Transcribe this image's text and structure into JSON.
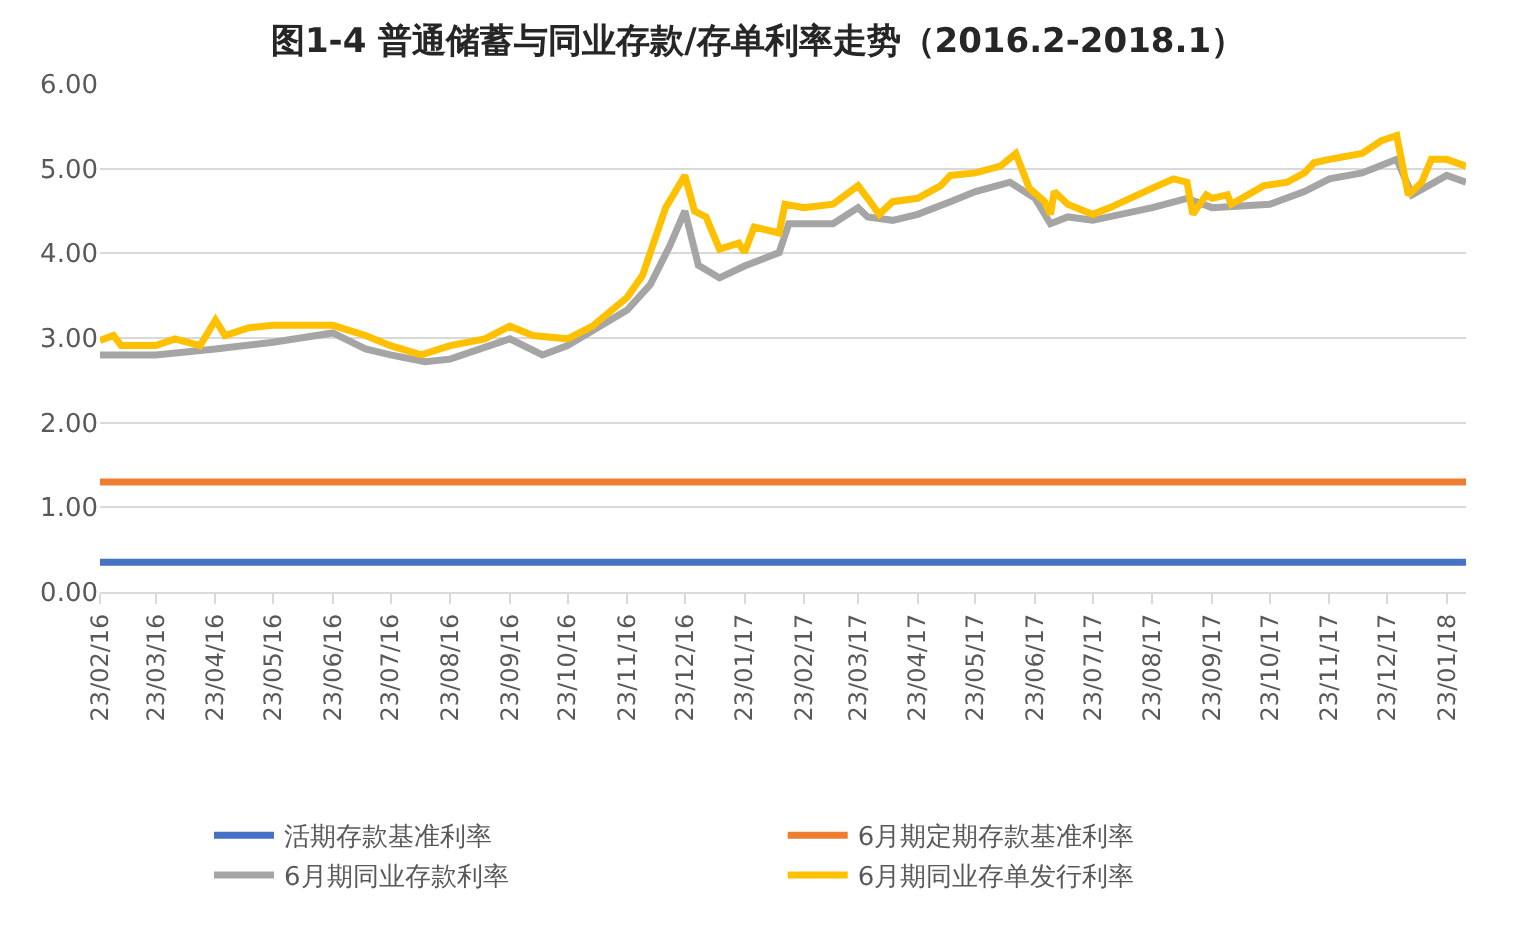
{
  "chart_data": {
    "type": "line",
    "title": "图1-4 普通储蓄与同业存款/存单利率走势（2016.2-2018.1）",
    "xlim": [
      "2016-02-23",
      "2018-02-02"
    ],
    "xticks": [
      {
        "value": "2016-02-23",
        "label": "23/02/16"
      },
      {
        "value": "2016-03-23",
        "label": "23/03/16"
      },
      {
        "value": "2016-04-23",
        "label": "23/04/16"
      },
      {
        "value": "2016-05-23",
        "label": "23/05/16"
      },
      {
        "value": "2016-06-23",
        "label": "23/06/16"
      },
      {
        "value": "2016-07-23",
        "label": "23/07/16"
      },
      {
        "value": "2016-08-23",
        "label": "23/08/16"
      },
      {
        "value": "2016-09-23",
        "label": "23/09/16"
      },
      {
        "value": "2016-10-23",
        "label": "23/10/16"
      },
      {
        "value": "2016-11-23",
        "label": "23/11/16"
      },
      {
        "value": "2016-12-23",
        "label": "23/12/16"
      },
      {
        "value": "2017-01-23",
        "label": "23/01/17"
      },
      {
        "value": "2017-02-23",
        "label": "23/02/17"
      },
      {
        "value": "2017-03-23",
        "label": "23/03/17"
      },
      {
        "value": "2017-04-23",
        "label": "23/04/17"
      },
      {
        "value": "2017-05-23",
        "label": "23/05/17"
      },
      {
        "value": "2017-06-23",
        "label": "23/06/17"
      },
      {
        "value": "2017-07-23",
        "label": "23/07/17"
      },
      {
        "value": "2017-08-23",
        "label": "23/08/17"
      },
      {
        "value": "2017-09-23",
        "label": "23/09/17"
      },
      {
        "value": "2017-10-23",
        "label": "23/10/17"
      },
      {
        "value": "2017-11-23",
        "label": "23/11/17"
      },
      {
        "value": "2017-12-23",
        "label": "23/12/17"
      },
      {
        "value": "2018-01-23",
        "label": "23/01/18"
      }
    ],
    "ylim": [
      0,
      6
    ],
    "yticks": [
      {
        "value": 0,
        "label": "0.00"
      },
      {
        "value": 1,
        "label": "1.00"
      },
      {
        "value": 2,
        "label": "2.00"
      },
      {
        "value": 3,
        "label": "3.00"
      },
      {
        "value": 4,
        "label": "4.00"
      },
      {
        "value": 5,
        "label": "5.00"
      },
      {
        "value": 6,
        "label": "6.00"
      }
    ],
    "grid": "y",
    "legend": "bottom",
    "marker": "none",
    "line_style": "solid",
    "series": [
      {
        "name": "活期存款基准利率",
        "color": "#4472c4",
        "x": [
          "2016-02-23",
          "2018-02-02"
        ],
        "values": [
          0.35,
          0.35
        ]
      },
      {
        "name": "6月期定期存款基准利率",
        "color": "#ed7d31",
        "x": [
          "2016-02-23",
          "2018-02-02"
        ],
        "values": [
          1.3,
          1.3
        ]
      },
      {
        "name": "6月期同业存款利率",
        "color": "#a5a5a5",
        "x": [
          "2016-02-23",
          "2016-03-23",
          "2016-04-23",
          "2016-05-23",
          "2016-06-23",
          "2016-07-10",
          "2016-07-23",
          "2016-08-10",
          "2016-08-23",
          "2016-09-23",
          "2016-10-10",
          "2016-10-23",
          "2016-11-23",
          "2016-12-05",
          "2016-12-15",
          "2016-12-23",
          "2016-12-30",
          "2017-01-10",
          "2017-01-23",
          "2017-02-10",
          "2017-02-15",
          "2017-02-23",
          "2017-03-10",
          "2017-03-23",
          "2017-03-28",
          "2017-04-10",
          "2017-04-23",
          "2017-05-10",
          "2017-05-23",
          "2017-06-10",
          "2017-06-23",
          "2017-07-01",
          "2017-07-10",
          "2017-07-23",
          "2017-08-23",
          "2017-09-10",
          "2017-09-23",
          "2017-10-23",
          "2017-11-10",
          "2017-11-23",
          "2017-12-10",
          "2017-12-28",
          "2018-01-05",
          "2018-01-23",
          "2018-02-02"
        ],
        "values": [
          2.8,
          2.8,
          2.87,
          2.95,
          3.06,
          2.87,
          2.8,
          2.72,
          2.75,
          2.99,
          2.8,
          2.91,
          3.33,
          3.63,
          4.08,
          4.5,
          3.86,
          3.71,
          3.85,
          4.01,
          4.35,
          4.35,
          4.35,
          4.54,
          4.43,
          4.39,
          4.46,
          4.61,
          4.73,
          4.84,
          4.65,
          4.35,
          4.43,
          4.39,
          4.54,
          4.65,
          4.54,
          4.58,
          4.73,
          4.88,
          4.95,
          5.11,
          4.69,
          4.92,
          4.84
        ]
      },
      {
        "name": "6月期同业存单发行利率",
        "color": "#ffc000",
        "x": [
          "2016-02-23",
          "2016-03-01",
          "2016-03-05",
          "2016-03-23",
          "2016-04-02",
          "2016-04-15",
          "2016-04-23",
          "2016-04-28",
          "2016-05-10",
          "2016-05-23",
          "2016-06-23",
          "2016-07-10",
          "2016-07-23",
          "2016-08-08",
          "2016-08-23",
          "2016-09-10",
          "2016-09-23",
          "2016-10-05",
          "2016-10-23",
          "2016-11-05",
          "2016-11-23",
          "2016-12-01",
          "2016-12-13",
          "2016-12-23",
          "2016-12-28",
          "2017-01-03",
          "2017-01-10",
          "2017-01-20",
          "2017-01-23",
          "2017-01-28",
          "2017-02-10",
          "2017-02-13",
          "2017-02-23",
          "2017-03-10",
          "2017-03-23",
          "2017-03-28",
          "2017-04-03",
          "2017-04-10",
          "2017-04-23",
          "2017-05-05",
          "2017-05-10",
          "2017-05-23",
          "2017-06-05",
          "2017-06-13",
          "2017-06-20",
          "2017-06-28",
          "2017-07-01",
          "2017-07-03",
          "2017-07-10",
          "2017-07-23",
          "2017-08-01",
          "2017-08-23",
          "2017-09-03",
          "2017-09-10",
          "2017-09-13",
          "2017-09-20",
          "2017-09-23",
          "2017-10-01",
          "2017-10-03",
          "2017-10-20",
          "2017-11-01",
          "2017-11-10",
          "2017-11-15",
          "2017-11-23",
          "2017-12-10",
          "2017-12-20",
          "2017-12-28",
          "2018-01-03",
          "2018-01-10",
          "2018-01-15",
          "2018-01-23",
          "2018-02-02"
        ],
        "values": [
          2.97,
          3.03,
          2.91,
          2.91,
          2.99,
          2.91,
          3.21,
          3.03,
          3.12,
          3.15,
          3.15,
          3.03,
          2.91,
          2.8,
          2.91,
          2.99,
          3.14,
          3.03,
          2.99,
          3.14,
          3.48,
          3.74,
          4.54,
          4.92,
          4.5,
          4.43,
          4.05,
          4.12,
          4.01,
          4.31,
          4.24,
          4.58,
          4.54,
          4.58,
          4.8,
          4.65,
          4.46,
          4.61,
          4.65,
          4.8,
          4.92,
          4.95,
          5.03,
          5.18,
          4.77,
          4.61,
          4.46,
          4.73,
          4.58,
          4.46,
          4.54,
          4.77,
          4.88,
          4.84,
          4.46,
          4.69,
          4.65,
          4.69,
          4.58,
          4.8,
          4.84,
          4.95,
          5.07,
          5.11,
          5.18,
          5.33,
          5.39,
          4.69,
          4.84,
          5.11,
          5.11,
          5.03
        ]
      }
    ]
  }
}
